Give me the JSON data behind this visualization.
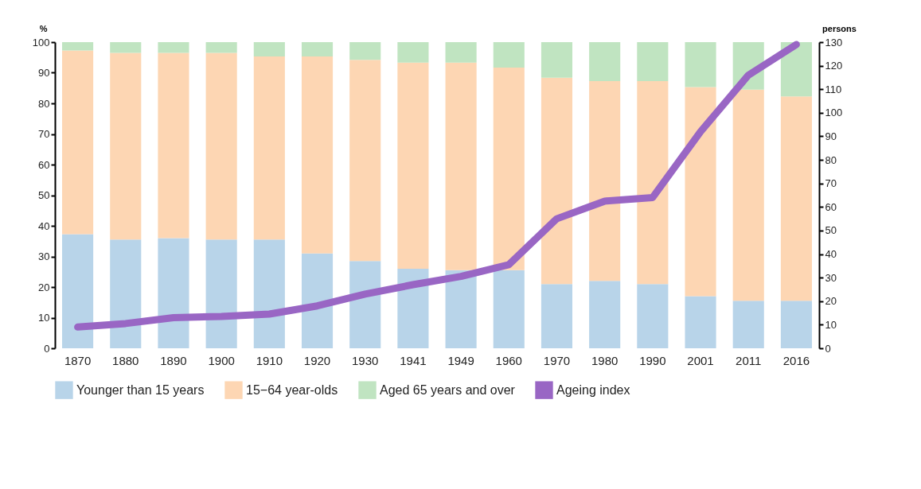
{
  "chart_data": {
    "type": "bar",
    "stacked": true,
    "ylabel": "%",
    "y2label": "persons",
    "categories": [
      "1870",
      "1880",
      "1890",
      "1900",
      "1910",
      "1920",
      "1930",
      "1941",
      "1949",
      "1960",
      "1970",
      "1980",
      "1990",
      "2001",
      "2011",
      "2016"
    ],
    "series": [
      {
        "name": "Younger than 15 years",
        "color": "#b8d4e9",
        "values": [
          37.3,
          35.5,
          36.0,
          35.5,
          35.5,
          31.0,
          28.5,
          26.0,
          25.5,
          25.5,
          21.0,
          22.0,
          21.0,
          17.0,
          15.5,
          15.5
        ]
      },
      {
        "name": "15−64 year-olds",
        "color": "#fdd6b3",
        "values": [
          60.0,
          61.0,
          60.5,
          61.0,
          59.8,
          64.3,
          65.7,
          67.3,
          67.8,
          66.2,
          67.4,
          65.3,
          66.3,
          68.3,
          69.0,
          66.8
        ]
      },
      {
        "name": "Aged 65 years and over",
        "color": "#c0e4c1",
        "values": [
          2.7,
          3.5,
          3.5,
          3.5,
          4.7,
          4.7,
          5.8,
          6.7,
          6.7,
          8.3,
          11.6,
          12.7,
          12.7,
          14.7,
          15.5,
          17.7
        ]
      },
      {
        "name": "Ageing index",
        "type": "line",
        "axis": "y2",
        "color": "#9966c4",
        "values": [
          9,
          10.5,
          13,
          13.5,
          14.5,
          18,
          23,
          27,
          30.5,
          35.5,
          55,
          62.5,
          64,
          92,
          116,
          129
        ]
      }
    ],
    "ylim": [
      0,
      100
    ],
    "yticks": [
      0,
      10,
      20,
      30,
      40,
      50,
      60,
      70,
      80,
      90,
      100
    ],
    "y2lim": [
      0,
      130
    ],
    "y2ticks": [
      0,
      10,
      20,
      30,
      40,
      50,
      60,
      70,
      80,
      90,
      100,
      110,
      120,
      130
    ],
    "grid": false,
    "legend": "bottom",
    "marker": "none",
    "line_style": "solid"
  }
}
